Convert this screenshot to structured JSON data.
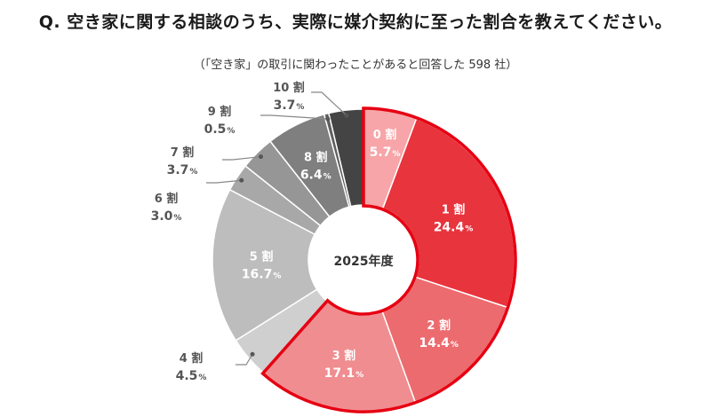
{
  "header": {
    "question": "Q. 空き家に関する相談のうち、実際に媒介契約に至った割合を教えてください。",
    "note": "（「空き家」の取引に関わったことがあると回答した 598 社）"
  },
  "chart_data": {
    "type": "pie",
    "center_label": "2025年度",
    "unit": "%",
    "categories": [
      "0 割",
      "1 割",
      "2 割",
      "3 割",
      "4 割",
      "5 割",
      "6 割",
      "7 割",
      "8 割",
      "9 割",
      "10 割"
    ],
    "values": [
      5.7,
      24.4,
      14.4,
      17.1,
      4.5,
      16.7,
      3.0,
      3.7,
      6.4,
      0.5,
      3.7
    ],
    "value_labels": [
      "5.7",
      "24.4",
      "14.4",
      "17.1",
      "4.5",
      "16.7",
      "3.0",
      "3.7",
      "6.4",
      "0.5",
      "3.7"
    ],
    "colors": [
      "#f7a5a8",
      "#e8343d",
      "#ec6b6f",
      "#f08d90",
      "#cfcfcf",
      "#bdbdbd",
      "#a8a8a8",
      "#969696",
      "#7f7f7f",
      "#5f5f5f",
      "#444444"
    ],
    "highlight_outline_color": "#e60012",
    "highlight_group": [
      "0 割",
      "1 割",
      "2 割",
      "3 割"
    ]
  }
}
